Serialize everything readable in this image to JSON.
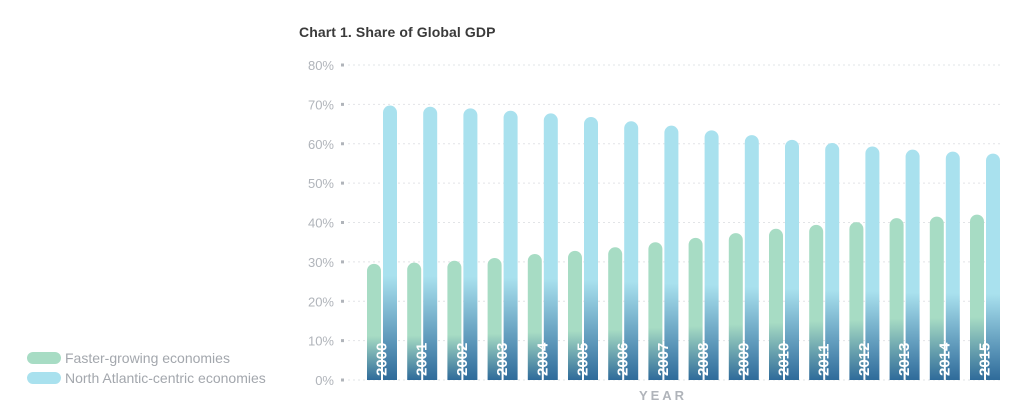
{
  "chart_data": {
    "type": "bar",
    "title": "Chart 1. Share of Global GDP",
    "xlabel": "YEAR",
    "ylabel": "",
    "ylim": [
      0,
      80
    ],
    "y_ticks": [
      "0%",
      "10%",
      "20%",
      "30%",
      "40%",
      "50%",
      "60%",
      "70%",
      "80%"
    ],
    "grid": true,
    "legend_position": "bottom-left",
    "categories": [
      "2000",
      "2001",
      "2002",
      "2003",
      "2004",
      "2005",
      "2006",
      "2007",
      "2008",
      "2009",
      "2010",
      "2011",
      "2012",
      "2013",
      "2014",
      "2015"
    ],
    "series": [
      {
        "name": "Faster-growing economies",
        "color": "#a7dcc4",
        "values": [
          29.5,
          29.8,
          30.3,
          31.0,
          32.0,
          32.8,
          33.7,
          35.0,
          36.1,
          37.3,
          38.4,
          39.4,
          40.1,
          41.1,
          41.5,
          42.0
        ]
      },
      {
        "name": "North Atlantic-centric economies",
        "color": "#a9e1ee",
        "values": [
          69.7,
          69.4,
          69.0,
          68.4,
          67.7,
          66.8,
          65.7,
          64.6,
          63.4,
          62.2,
          61.0,
          60.2,
          59.3,
          58.5,
          58.0,
          57.5
        ]
      }
    ],
    "colors": {
      "bar_base": "#2f6b9a",
      "year_label": "#ffffff",
      "axis_text": "#b0b4ba",
      "grid": "#e2e4e7"
    }
  }
}
